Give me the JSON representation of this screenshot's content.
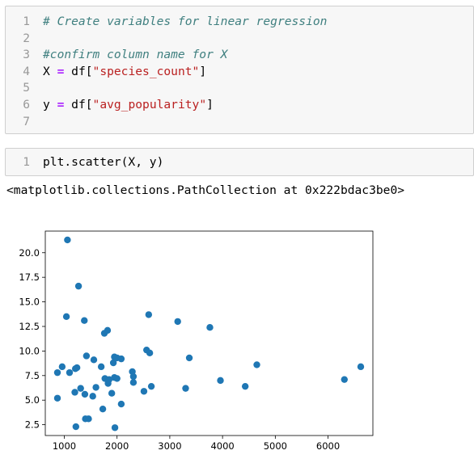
{
  "cell1": {
    "lines": [
      {
        "n": "1",
        "parts": [
          {
            "t": "# Create variables for linear regression",
            "c": "comment"
          }
        ]
      },
      {
        "n": "2",
        "parts": []
      },
      {
        "n": "3",
        "parts": [
          {
            "t": "#confirm column name for X",
            "c": "comment"
          }
        ]
      },
      {
        "n": "4",
        "parts": [
          {
            "t": "X ",
            "c": ""
          },
          {
            "t": "=",
            "c": "op"
          },
          {
            "t": " df[",
            "c": ""
          },
          {
            "t": "\"species_count\"",
            "c": "str"
          },
          {
            "t": "]",
            "c": ""
          }
        ]
      },
      {
        "n": "5",
        "parts": []
      },
      {
        "n": "6",
        "parts": [
          {
            "t": "y ",
            "c": ""
          },
          {
            "t": "=",
            "c": "op"
          },
          {
            "t": " df[",
            "c": ""
          },
          {
            "t": "\"avg_popularity\"",
            "c": "str"
          },
          {
            "t": "]",
            "c": ""
          }
        ]
      },
      {
        "n": "7",
        "parts": []
      }
    ]
  },
  "cell2": {
    "lines": [
      {
        "n": "1",
        "parts": [
          {
            "t": "plt.scatter(X, y)",
            "c": ""
          }
        ]
      }
    ]
  },
  "output": {
    "text": "<matplotlib.collections.PathCollection at 0x222bdac3be0>"
  },
  "chart_data": {
    "type": "scatter",
    "title": "",
    "xlabel": "",
    "ylabel": "",
    "xlim": [
      640,
      6850
    ],
    "ylim": [
      1.4,
      22.2
    ],
    "xticks": [
      1000,
      2000,
      3000,
      4000,
      5000,
      6000
    ],
    "xtick_labels": [
      "1000",
      "2000",
      "3000",
      "4000",
      "5000",
      "6000"
    ],
    "yticks": [
      2.5,
      5.0,
      7.5,
      10.0,
      12.5,
      15.0,
      17.5,
      20.0
    ],
    "ytick_labels": [
      "2.5",
      "5.0",
      "7.5",
      "10.0",
      "12.5",
      "15.0",
      "17.5",
      "20.0"
    ],
    "grid": false,
    "marker_color": "#1f77b4",
    "points": [
      [
        1060,
        21.3
      ],
      [
        1270,
        16.6
      ],
      [
        1040,
        13.5
      ],
      [
        1380,
        13.1
      ],
      [
        2600,
        13.7
      ],
      [
        3150,
        13.0
      ],
      [
        3760,
        12.4
      ],
      [
        1820,
        12.1
      ],
      [
        1760,
        11.8
      ],
      [
        2560,
        10.1
      ],
      [
        2620,
        9.8
      ],
      [
        1420,
        9.5
      ],
      [
        1560,
        9.1
      ],
      [
        1950,
        9.4
      ],
      [
        2000,
        9.3
      ],
      [
        2080,
        9.2
      ],
      [
        1930,
        8.8
      ],
      [
        3370,
        9.3
      ],
      [
        4650,
        8.6
      ],
      [
        6620,
        8.4
      ],
      [
        960,
        8.4
      ],
      [
        1210,
        8.2
      ],
      [
        1240,
        8.3
      ],
      [
        1700,
        8.4
      ],
      [
        870,
        7.8
      ],
      [
        1100,
        7.8
      ],
      [
        2290,
        7.9
      ],
      [
        2310,
        7.4
      ],
      [
        1770,
        7.2
      ],
      [
        1850,
        7.1
      ],
      [
        1950,
        7.3
      ],
      [
        2000,
        7.2
      ],
      [
        1830,
        6.7
      ],
      [
        2310,
        6.8
      ],
      [
        3960,
        7.0
      ],
      [
        6310,
        7.1
      ],
      [
        1310,
        6.2
      ],
      [
        1600,
        6.3
      ],
      [
        2650,
        6.4
      ],
      [
        3300,
        6.2
      ],
      [
        4430,
        6.4
      ],
      [
        1200,
        5.8
      ],
      [
        1390,
        5.6
      ],
      [
        1540,
        5.4
      ],
      [
        1900,
        5.7
      ],
      [
        2510,
        5.9
      ],
      [
        870,
        5.2
      ],
      [
        2080,
        4.6
      ],
      [
        1730,
        4.1
      ],
      [
        1400,
        3.1
      ],
      [
        1460,
        3.1
      ],
      [
        1220,
        2.3
      ],
      [
        1960,
        2.2
      ]
    ]
  }
}
